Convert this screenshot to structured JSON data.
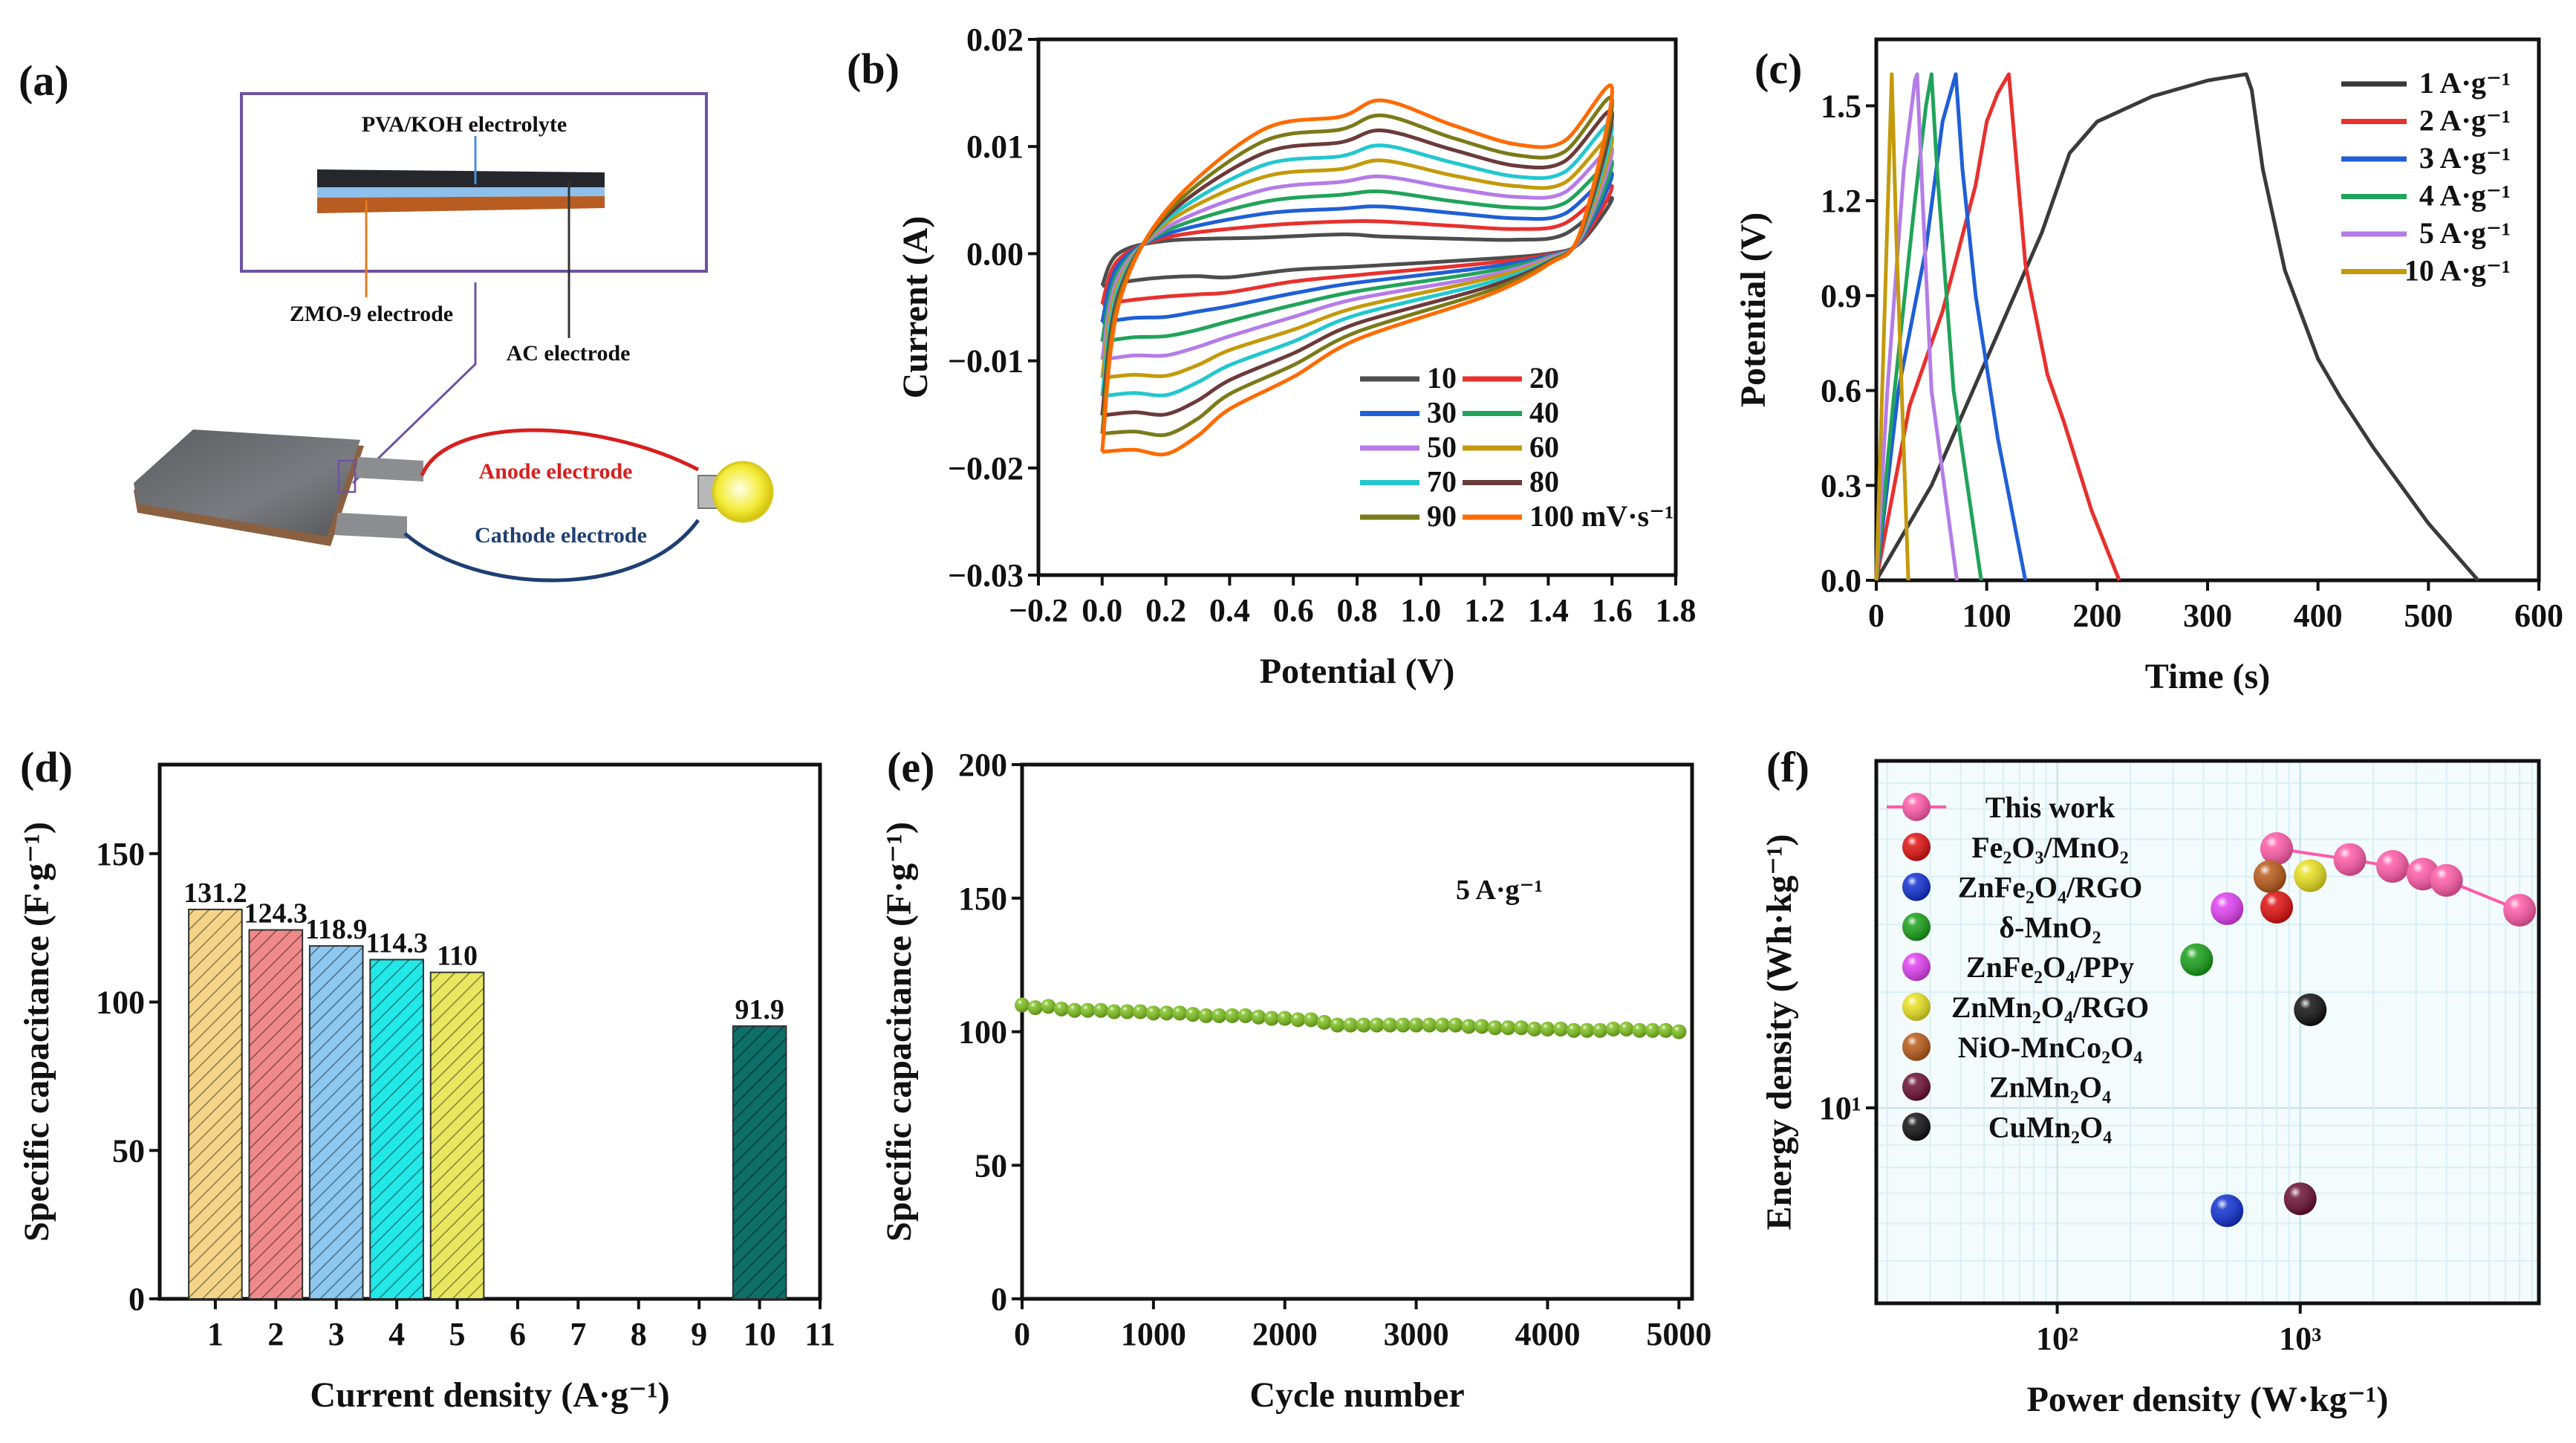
{
  "panel_a": {
    "label": "(a)",
    "electrolyte": "PVA/KOH electrolyte",
    "zmo_electrode": "ZMO-9 electrode",
    "ac_electrode": "AC electrode",
    "anode": "Anode electrode",
    "cathode": "Cathode electrode",
    "colors": {
      "box": "#6e52a3",
      "anode": "#d81e1e",
      "cathode": "#1e3f73",
      "layer_top": "#25272d",
      "layer_mid": "#8ec0ee",
      "layer_bottom": "#b85c22"
    }
  },
  "chart_data": [
    {
      "id": "b",
      "label": "(b)",
      "type": "line",
      "xlabel": "Potential (V)",
      "ylabel": "Current (A)",
      "xlim": [
        -0.2,
        1.8
      ],
      "ylim": [
        -0.03,
        0.02
      ],
      "xticks": [
        -0.2,
        0.0,
        0.2,
        0.4,
        0.6,
        0.8,
        1.0,
        1.2,
        1.4,
        1.6,
        1.8
      ],
      "xticklabels": [
        "−0.2",
        "0.0",
        "0.2",
        "0.4",
        "0.6",
        "0.8",
        "1.0",
        "1.2",
        "1.4",
        "1.6",
        "1.8"
      ],
      "yticks": [
        -0.03,
        -0.02,
        -0.01,
        0.0,
        0.01,
        0.02
      ],
      "yticklabels": [
        "−0.03",
        "−0.02",
        "−0.01",
        "0.00",
        "0.01",
        "0.02"
      ],
      "legend_position": "bottom-right",
      "x": [
        0,
        0.05,
        0.2,
        0.5,
        0.75,
        0.88,
        1.1,
        1.3,
        1.45,
        1.6,
        1.5,
        1.4,
        1.2,
        0.8,
        0.6,
        0.4,
        0.3,
        0.2,
        0.1,
        0
      ],
      "series": [
        {
          "name": "10",
          "color": "#4d4d4d",
          "y": [
            -0.003,
            0.0,
            0.0012,
            0.0015,
            0.0018,
            0.0016,
            0.0014,
            0.0013,
            0.0018,
            0.0052,
            0.001,
            0.0,
            -0.0005,
            -0.0012,
            -0.0015,
            -0.0022,
            -0.0021,
            -0.0022,
            -0.0025,
            -0.003
          ]
        },
        {
          "name": "20",
          "color": "#e8302d",
          "y": [
            -0.0047,
            -0.0006,
            0.0015,
            0.0026,
            0.003,
            0.003,
            0.0026,
            0.0023,
            0.0028,
            0.0063,
            0.0011,
            -0.0001,
            -0.0009,
            -0.002,
            -0.0026,
            -0.0036,
            -0.0038,
            -0.004,
            -0.0043,
            -0.0047
          ]
        },
        {
          "name": "30",
          "color": "#1f5fd6",
          "y": [
            -0.0064,
            -0.0011,
            0.0018,
            0.0037,
            0.0042,
            0.0044,
            0.0038,
            0.0033,
            0.0037,
            0.0075,
            0.0012,
            -0.0002,
            -0.0013,
            -0.0027,
            -0.0037,
            -0.0049,
            -0.0054,
            -0.0059,
            -0.006,
            -0.0064
          ]
        },
        {
          "name": "40",
          "color": "#21a35a",
          "y": [
            -0.0082,
            -0.0017,
            0.0021,
            0.0048,
            0.0055,
            0.0058,
            0.0049,
            0.0043,
            0.0047,
            0.0086,
            0.0013,
            -0.0003,
            -0.0017,
            -0.0035,
            -0.0048,
            -0.0063,
            -0.0071,
            -0.0077,
            -0.0078,
            -0.0082
          ]
        },
        {
          "name": "50",
          "color": "#b57ce8",
          "y": [
            -0.0099,
            -0.0022,
            0.0024,
            0.0059,
            0.0067,
            0.0072,
            0.0061,
            0.0053,
            0.0057,
            0.0098,
            0.0014,
            -0.0004,
            -0.0021,
            -0.0042,
            -0.0059,
            -0.0077,
            -0.0087,
            -0.0095,
            -0.0095,
            -0.0099
          ]
        },
        {
          "name": "60",
          "color": "#c49a0c",
          "y": [
            -0.0116,
            -0.0028,
            0.0028,
            0.0071,
            0.0079,
            0.0087,
            0.0073,
            0.0063,
            0.0066,
            0.0109,
            0.0016,
            -0.0006,
            -0.0024,
            -0.005,
            -0.0071,
            -0.009,
            -0.0104,
            -0.0114,
            -0.0113,
            -0.0116
          ]
        },
        {
          "name": "70",
          "color": "#22c7cf",
          "y": [
            -0.0133,
            -0.0033,
            0.0031,
            0.0082,
            0.0091,
            0.0101,
            0.0085,
            0.0072,
            0.0076,
            0.0121,
            0.0017,
            -0.0007,
            -0.0028,
            -0.0057,
            -0.0082,
            -0.0104,
            -0.012,
            -0.0132,
            -0.013,
            -0.0133
          ]
        },
        {
          "name": "80",
          "color": "#6b3a3a",
          "y": [
            -0.0151,
            -0.0039,
            0.0034,
            0.0093,
            0.0104,
            0.0115,
            0.0097,
            0.0082,
            0.0086,
            0.0132,
            0.0018,
            -0.0008,
            -0.0032,
            -0.0065,
            -0.0093,
            -0.0118,
            -0.0137,
            -0.015,
            -0.0148,
            -0.0151
          ]
        },
        {
          "name": "90",
          "color": "#7a7a1a",
          "y": [
            -0.0168,
            -0.0044,
            0.0037,
            0.0104,
            0.0116,
            0.0129,
            0.0108,
            0.0092,
            0.0095,
            0.0144,
            0.0019,
            -0.0009,
            -0.0036,
            -0.0073,
            -0.0104,
            -0.0131,
            -0.0154,
            -0.0169,
            -0.0166,
            -0.0168
          ]
        },
        {
          "name": "100 mV·s⁻¹",
          "color": "#ff6a00",
          "y": [
            -0.0185,
            -0.005,
            0.004,
            0.0115,
            0.0128,
            0.0143,
            0.012,
            0.0102,
            0.0105,
            0.0155,
            0.002,
            -0.001,
            -0.004,
            -0.008,
            -0.0115,
            -0.0145,
            -0.017,
            -0.0187,
            -0.0183,
            -0.0185
          ]
        }
      ]
    },
    {
      "id": "c",
      "label": "(c)",
      "type": "line",
      "xlabel": "Time (s)",
      "ylabel": "Potential (V)",
      "xlim": [
        0,
        600
      ],
      "ylim": [
        0,
        1.71
      ],
      "xticks": [
        0,
        100,
        200,
        300,
        400,
        500,
        600
      ],
      "xticklabels": [
        "0",
        "100",
        "200",
        "300",
        "400",
        "500",
        "600"
      ],
      "yticks": [
        0,
        0.3,
        0.6,
        0.9,
        1.2,
        1.5
      ],
      "yticklabels": [
        "0.0",
        "0.3",
        "0.6",
        "0.9",
        "1.2",
        "1.5"
      ],
      "legend_position": "top-right",
      "series": [
        {
          "name": "1 A·g⁻¹",
          "color": "#3a3a3a",
          "points": [
            [
              0,
              0
            ],
            [
              50,
              0.3
            ],
            [
              100,
              0.7
            ],
            [
              150,
              1.1
            ],
            [
              175,
              1.35
            ],
            [
              200,
              1.45
            ],
            [
              250,
              1.53
            ],
            [
              300,
              1.58
            ],
            [
              335,
              1.6
            ],
            [
              340,
              1.55
            ],
            [
              350,
              1.3
            ],
            [
              370,
              0.98
            ],
            [
              400,
              0.7
            ],
            [
              420,
              0.58
            ],
            [
              450,
              0.42
            ],
            [
              500,
              0.18
            ],
            [
              545,
              0
            ]
          ]
        },
        {
          "name": "2 A·g⁻¹",
          "color": "#e8302d",
          "points": [
            [
              0,
              0
            ],
            [
              30,
              0.55
            ],
            [
              60,
              0.85
            ],
            [
              90,
              1.25
            ],
            [
              100,
              1.45
            ],
            [
              110,
              1.54
            ],
            [
              120,
              1.6
            ],
            [
              125,
              1.4
            ],
            [
              135,
              1.0
            ],
            [
              155,
              0.65
            ],
            [
              170,
              0.5
            ],
            [
              195,
              0.22
            ],
            [
              220,
              0
            ]
          ]
        },
        {
          "name": "3 A·g⁻¹",
          "color": "#1f5fd6",
          "points": [
            [
              0,
              0
            ],
            [
              20,
              0.6
            ],
            [
              45,
              1.05
            ],
            [
              60,
              1.45
            ],
            [
              72,
              1.6
            ],
            [
              78,
              1.3
            ],
            [
              90,
              0.9
            ],
            [
              110,
              0.45
            ],
            [
              135,
              0
            ]
          ]
        },
        {
          "name": "4 A·g⁻¹",
          "color": "#21a35a",
          "points": [
            [
              0,
              0
            ],
            [
              15,
              0.55
            ],
            [
              35,
              1.2
            ],
            [
              45,
              1.5
            ],
            [
              50,
              1.6
            ],
            [
              55,
              1.3
            ],
            [
              70,
              0.6
            ],
            [
              95,
              0
            ]
          ]
        },
        {
          "name": "5 A·g⁻¹",
          "color": "#b57ce8",
          "points": [
            [
              0,
              0
            ],
            [
              10,
              0.6
            ],
            [
              25,
              1.3
            ],
            [
              35,
              1.58
            ],
            [
              37,
              1.6
            ],
            [
              42,
              1.2
            ],
            [
              50,
              0.6
            ],
            [
              73,
              0
            ]
          ]
        },
        {
          "name": "10 A·g⁻¹",
          "color": "#c49a0c",
          "points": [
            [
              0,
              0
            ],
            [
              8,
              0.9
            ],
            [
              14,
              1.6
            ],
            [
              18,
              1.1
            ],
            [
              24,
              0.5
            ],
            [
              29,
              0
            ]
          ]
        }
      ]
    },
    {
      "id": "d",
      "label": "(d)",
      "type": "bar",
      "xlabel": "Current density (A·g⁻¹)",
      "ylabel": "Specific capacitance (F·g⁻¹)",
      "xlim": [
        0.08,
        11
      ],
      "ylim": [
        0,
        180
      ],
      "xticks": [
        1,
        2,
        3,
        4,
        5,
        6,
        7,
        8,
        9,
        10,
        11
      ],
      "xticklabels": [
        "1",
        "2",
        "3",
        "4",
        "5",
        "6",
        "7",
        "8",
        "9",
        "10",
        "11"
      ],
      "yticks": [
        0,
        50,
        100,
        150
      ],
      "yticklabels": [
        "0",
        "50",
        "100",
        "150"
      ],
      "categories": [
        1,
        2,
        3,
        4,
        5,
        10
      ],
      "values": [
        131.2,
        124.3,
        118.9,
        114.3,
        110,
        91.9
      ],
      "data_labels": [
        "131.2",
        "124.3",
        "118.9",
        "114.3",
        "110",
        "91.9"
      ],
      "colors": [
        "#f5d48a",
        "#f08a8a",
        "#8cc8f0",
        "#22e8e8",
        "#e8e860",
        "#0e6e68"
      ]
    },
    {
      "id": "e",
      "label": "(e)",
      "type": "scatter",
      "xlabel": "Cycle number",
      "ylabel": "Specific capacitance (F·g⁻¹)",
      "xlim": [
        0,
        5100
      ],
      "ylim": [
        0,
        200
      ],
      "xticks": [
        0,
        1000,
        2000,
        3000,
        4000,
        5000
      ],
      "xticklabels": [
        "0",
        "1000",
        "2000",
        "3000",
        "4000",
        "5000"
      ],
      "yticks": [
        0,
        50,
        100,
        150,
        200
      ],
      "yticklabels": [
        "0",
        "50",
        "100",
        "150",
        "200"
      ],
      "annotation": "5 A·g⁻¹",
      "color": "#7cbf1e",
      "x": [
        0,
        100,
        200,
        300,
        400,
        500,
        600,
        700,
        800,
        900,
        1000,
        1100,
        1200,
        1300,
        1400,
        1500,
        1600,
        1700,
        1800,
        1900,
        2000,
        2100,
        2200,
        2300,
        2400,
        2500,
        2600,
        2700,
        2800,
        2900,
        3000,
        3100,
        3200,
        3300,
        3400,
        3500,
        3600,
        3700,
        3800,
        3900,
        4000,
        4100,
        4200,
        4300,
        4400,
        4500,
        4600,
        4700,
        4800,
        4900,
        5000
      ],
      "y": [
        110,
        109,
        109.5,
        108.5,
        108,
        108,
        108,
        107.5,
        107.5,
        107.5,
        107,
        107,
        107,
        106.5,
        106,
        106,
        106,
        106,
        105.5,
        105,
        105,
        104.5,
        104.5,
        103.5,
        102.5,
        102.5,
        102.5,
        102.5,
        102.5,
        102.5,
        102.5,
        102.5,
        102.5,
        102.5,
        102,
        102,
        101.5,
        101.5,
        101.5,
        101,
        101,
        101,
        100.5,
        100.5,
        100.5,
        101,
        101,
        100.5,
        100.5,
        100.5,
        100
      ]
    },
    {
      "id": "f",
      "label": "(f)",
      "type": "scatter",
      "xscale": "log",
      "yscale": "log",
      "xlabel": "Power density (W·kg⁻¹)",
      "ylabel": "Energy density (Wh·kg⁻¹)",
      "xlim": [
        18,
        9600
      ],
      "ylim": [
        3.1,
        80
      ],
      "xticks": [
        100,
        1000
      ],
      "xticklabels": [
        "10²",
        "10³"
      ],
      "yticks": [
        10
      ],
      "yticklabels": [
        "10¹"
      ],
      "grid": true,
      "legend_position": "top-left",
      "series": [
        {
          "name": "This work",
          "color": "#ff5aa8",
          "line": true,
          "points": [
            [
              800,
              47.3
            ],
            [
              1600,
              44.3
            ],
            [
              2400,
              42.5
            ],
            [
              3200,
              40.6
            ],
            [
              4000,
              39.1
            ],
            [
              8000,
              32.7
            ]
          ]
        },
        {
          "name": "Fe₂O₃/MnO₂",
          "color": "#e01010",
          "points": [
            [
              800,
              33.3
            ]
          ]
        },
        {
          "name": "ZnFe₂O₄/RGO",
          "color": "#1030d0",
          "points": [
            [
              500,
              5.4
            ]
          ]
        },
        {
          "name": "δ-MnO₂",
          "color": "#18a018",
          "points": [
            [
              375,
              24.3
            ]
          ]
        },
        {
          "name": "ZnFe₂O₄/PPy",
          "color": "#e040f0",
          "points": [
            [
              500,
              33.0
            ]
          ]
        },
        {
          "name": "ZnMn₂O₄/RGO",
          "color": "#e8e020",
          "points": [
            [
              1100,
              40.2
            ]
          ]
        },
        {
          "name": "NiO-MnCo₂O₄",
          "color": "#b85a18",
          "points": [
            [
              750,
              40.0
            ]
          ]
        },
        {
          "name": "ZnMn₂O₄",
          "color": "#6a1030",
          "points": [
            [
              1000,
              5.8
            ]
          ]
        },
        {
          "name": "CuMn₂O₄",
          "color": "#111111",
          "points": [
            [
              1100,
              18.0
            ]
          ]
        }
      ]
    }
  ]
}
